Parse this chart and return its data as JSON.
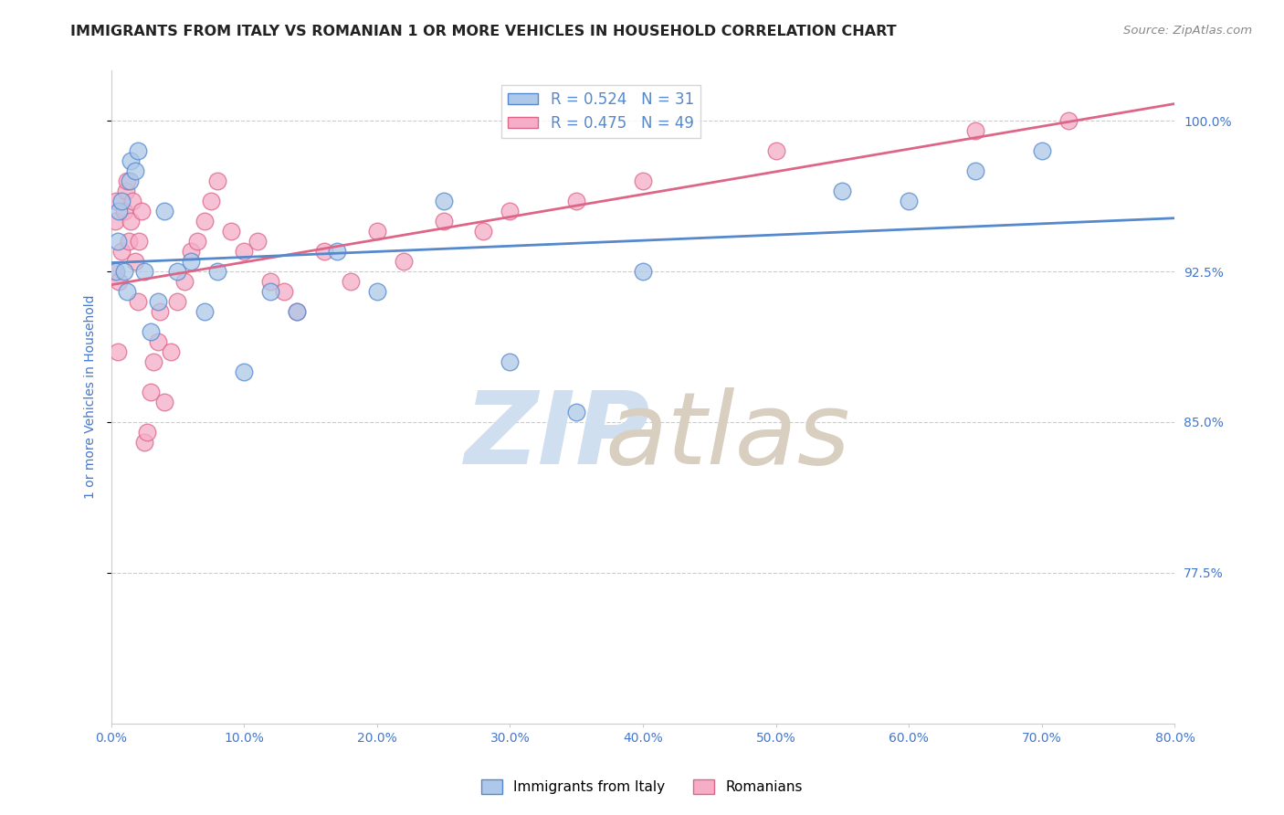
{
  "title": "IMMIGRANTS FROM ITALY VS ROMANIAN 1 OR MORE VEHICLES IN HOUSEHOLD CORRELATION CHART",
  "source": "Source: ZipAtlas.com",
  "ylabel": "1 or more Vehicles in Household",
  "xlim": [
    0.0,
    80.0
  ],
  "ylim": [
    70.0,
    102.5
  ],
  "yticks": [
    77.5,
    85.0,
    92.5,
    100.0
  ],
  "xticks": [
    0.0,
    10.0,
    20.0,
    30.0,
    40.0,
    50.0,
    60.0,
    70.0,
    80.0
  ],
  "italy_R": 0.524,
  "italy_N": 31,
  "romanian_R": 0.475,
  "romanian_N": 49,
  "italy_color": "#adc8e8",
  "romanian_color": "#f5adc8",
  "italy_line_color": "#5588cc",
  "romanian_line_color": "#dd6688",
  "italy_x": [
    0.4,
    0.5,
    0.6,
    0.8,
    1.0,
    1.2,
    1.4,
    1.5,
    1.8,
    2.0,
    2.5,
    3.0,
    3.5,
    4.0,
    5.0,
    6.0,
    7.0,
    8.0,
    10.0,
    12.0,
    14.0,
    17.0,
    20.0,
    25.0,
    30.0,
    35.0,
    40.0,
    55.0,
    60.0,
    65.0,
    70.0
  ],
  "italy_y": [
    92.5,
    94.0,
    95.5,
    96.0,
    92.5,
    91.5,
    97.0,
    98.0,
    97.5,
    98.5,
    92.5,
    89.5,
    91.0,
    95.5,
    92.5,
    93.0,
    90.5,
    92.5,
    87.5,
    91.5,
    90.5,
    93.5,
    91.5,
    96.0,
    88.0,
    85.5,
    92.5,
    96.5,
    96.0,
    97.5,
    98.5
  ],
  "romanian_x": [
    0.2,
    0.3,
    0.4,
    0.5,
    0.6,
    0.8,
    1.0,
    1.1,
    1.2,
    1.3,
    1.5,
    1.6,
    1.8,
    2.0,
    2.1,
    2.3,
    2.5,
    2.7,
    3.0,
    3.2,
    3.5,
    3.7,
    4.0,
    4.5,
    5.0,
    5.5,
    6.0,
    6.5,
    7.0,
    7.5,
    8.0,
    9.0,
    10.0,
    11.0,
    12.0,
    13.0,
    14.0,
    16.0,
    18.0,
    20.0,
    22.0,
    25.0,
    28.0,
    30.0,
    35.0,
    40.0,
    50.0,
    65.0,
    72.0
  ],
  "romanian_y": [
    92.5,
    95.0,
    96.0,
    88.5,
    92.0,
    93.5,
    95.5,
    96.5,
    97.0,
    94.0,
    95.0,
    96.0,
    93.0,
    91.0,
    94.0,
    95.5,
    84.0,
    84.5,
    86.5,
    88.0,
    89.0,
    90.5,
    86.0,
    88.5,
    91.0,
    92.0,
    93.5,
    94.0,
    95.0,
    96.0,
    97.0,
    94.5,
    93.5,
    94.0,
    92.0,
    91.5,
    90.5,
    93.5,
    92.0,
    94.5,
    93.0,
    95.0,
    94.5,
    95.5,
    96.0,
    97.0,
    98.5,
    99.5,
    100.0
  ],
  "background_color": "#ffffff",
  "grid_color": "#cccccc",
  "title_color": "#222222",
  "tick_label_color": "#4477cc",
  "axis_label_color": "#4477cc"
}
